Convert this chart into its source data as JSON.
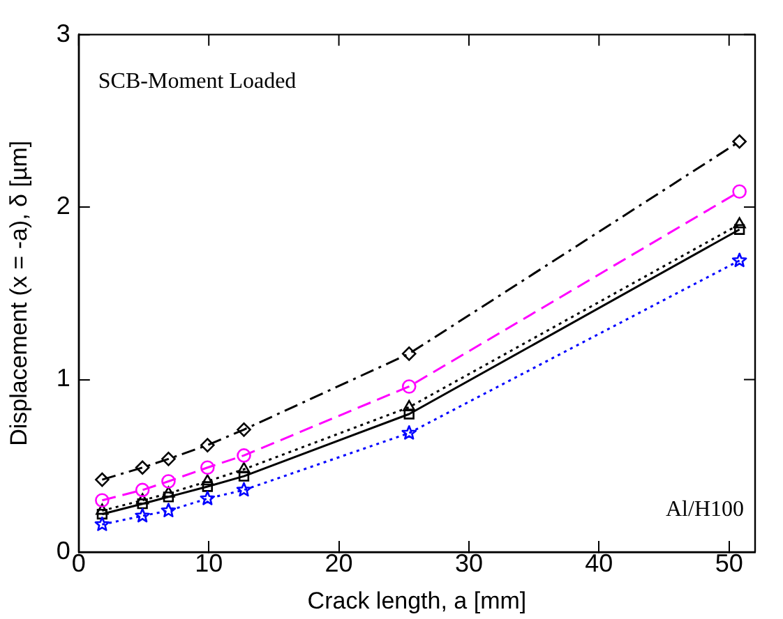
{
  "chart_data": {
    "type": "line",
    "xlabel": "Crack length, a [mm]",
    "ylabel": "Displacement (x = -a), δ [µm]",
    "x": [
      1.8,
      4.9,
      6.9,
      9.9,
      12.7,
      25.4,
      50.8
    ],
    "xlim": [
      0,
      52
    ],
    "xticks": [
      0,
      10,
      20,
      30,
      40,
      50
    ],
    "ylim": [
      0,
      3
    ],
    "yticks": [
      0,
      1,
      2,
      3
    ],
    "grid": false,
    "legend": false,
    "annotations": [
      "SCB-Moment Loaded",
      "Al/H100"
    ],
    "series": [
      {
        "color": "#000000",
        "marker": "diamond",
        "line_style": "dashdot",
        "values": [
          0.42,
          0.49,
          0.54,
          0.62,
          0.71,
          1.15,
          2.38
        ]
      },
      {
        "color": "#ff00ff",
        "marker": "circle",
        "line_style": "dashed",
        "values": [
          0.3,
          0.36,
          0.41,
          0.49,
          0.56,
          0.96,
          2.09
        ]
      },
      {
        "color": "#000000",
        "marker": "triangle",
        "line_style": "dotted",
        "values": [
          0.24,
          0.3,
          0.34,
          0.41,
          0.48,
          0.84,
          1.9
        ]
      },
      {
        "color": "#000000",
        "marker": "square",
        "line_style": "solid",
        "values": [
          0.22,
          0.28,
          0.32,
          0.38,
          0.44,
          0.8,
          1.87
        ]
      },
      {
        "color": "#0000ff",
        "marker": "star",
        "line_style": "dotted",
        "values": [
          0.16,
          0.21,
          0.24,
          0.31,
          0.36,
          0.69,
          1.69
        ]
      }
    ]
  }
}
